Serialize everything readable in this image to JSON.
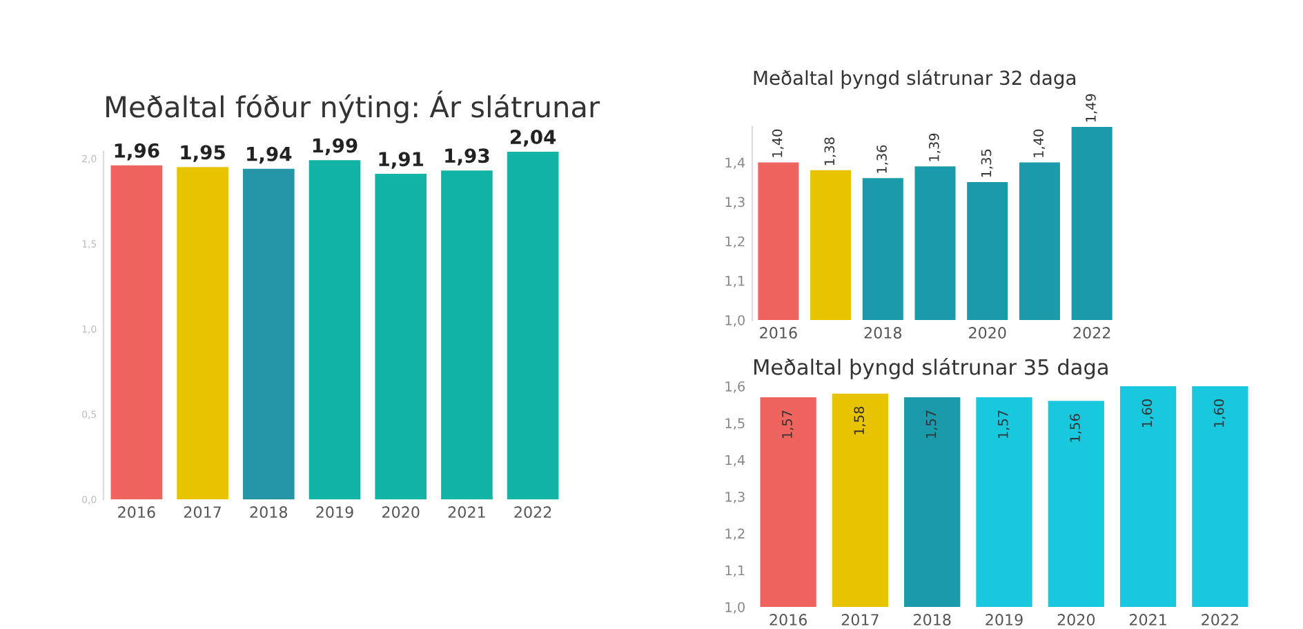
{
  "chart_data": [
    {
      "type": "bar",
      "title": "Meðaltal fóður nýting: Ár slátrunar",
      "categories": [
        "2016",
        "2017",
        "2018",
        "2019",
        "2020",
        "2021",
        "2022"
      ],
      "values": [
        1.96,
        1.95,
        1.94,
        1.99,
        1.91,
        1.93,
        2.04
      ],
      "value_labels": [
        "1,96",
        "1,95",
        "1,94",
        "1,99",
        "1,91",
        "1,93",
        "2,04"
      ],
      "colors": [
        "#f0645f",
        "#e8c400",
        "#2596a8",
        "#12b5a5",
        "#12b5a5",
        "#12b5a5",
        "#12b5a5"
      ],
      "ylim": [
        0,
        2.04
      ],
      "yticks": [
        {
          "value": 0,
          "label": "0,0"
        },
        {
          "value": 0.5,
          "label": "0,5"
        },
        {
          "value": 1.0,
          "label": "1,0"
        },
        {
          "value": 1.5,
          "label": "1,5"
        },
        {
          "value": 2.0,
          "label": "2,0"
        }
      ]
    },
    {
      "type": "bar",
      "title": "Meðaltal þyngd slátrunar 32 daga",
      "categories": [
        "2016",
        null,
        "2018",
        null,
        "2020",
        null,
        "2022"
      ],
      "values": [
        1.4,
        1.38,
        1.36,
        1.39,
        1.35,
        1.4,
        1.49
      ],
      "value_labels": [
        "1,40",
        "1,38",
        "1,36",
        "1,39",
        "1,35",
        "1,40",
        "1,49"
      ],
      "colors": [
        "#f0645f",
        "#e8c400",
        "#1a9aaa",
        "#1a9aaa",
        "#1a9aaa",
        "#1a9aaa",
        "#1a9aaa"
      ],
      "ylim": [
        1.0,
        1.49
      ],
      "yticks": [
        {
          "value": 1.0,
          "label": "1,0"
        },
        {
          "value": 1.1,
          "label": "1,1"
        },
        {
          "value": 1.2,
          "label": "1,2"
        },
        {
          "value": 1.3,
          "label": "1,3"
        },
        {
          "value": 1.4,
          "label": "1,4"
        }
      ]
    },
    {
      "type": "bar",
      "title": "Meðaltal þyngd slátrunar 35 daga",
      "categories": [
        "2016",
        "2017",
        "2018",
        "2019",
        "2020",
        "2021",
        "2022"
      ],
      "values": [
        1.57,
        1.58,
        1.57,
        1.57,
        1.56,
        1.6,
        1.6
      ],
      "value_labels": [
        "1,57",
        "1,58",
        "1,57",
        "1,57",
        "1,56",
        "1,60",
        "1,60"
      ],
      "colors": [
        "#f0645f",
        "#e8c400",
        "#1a9aaa",
        "#18c8dc",
        "#18c8dc",
        "#18c8dc",
        "#18c8dc"
      ],
      "ylim": [
        1.0,
        1.6
      ],
      "yticks": [
        {
          "value": 1.0,
          "label": "1,0"
        },
        {
          "value": 1.1,
          "label": "1,1"
        },
        {
          "value": 1.2,
          "label": "1,2"
        },
        {
          "value": 1.3,
          "label": "1,3"
        },
        {
          "value": 1.4,
          "label": "1,4"
        },
        {
          "value": 1.5,
          "label": "1,5"
        },
        {
          "value": 1.6,
          "label": "1,6"
        }
      ]
    }
  ]
}
